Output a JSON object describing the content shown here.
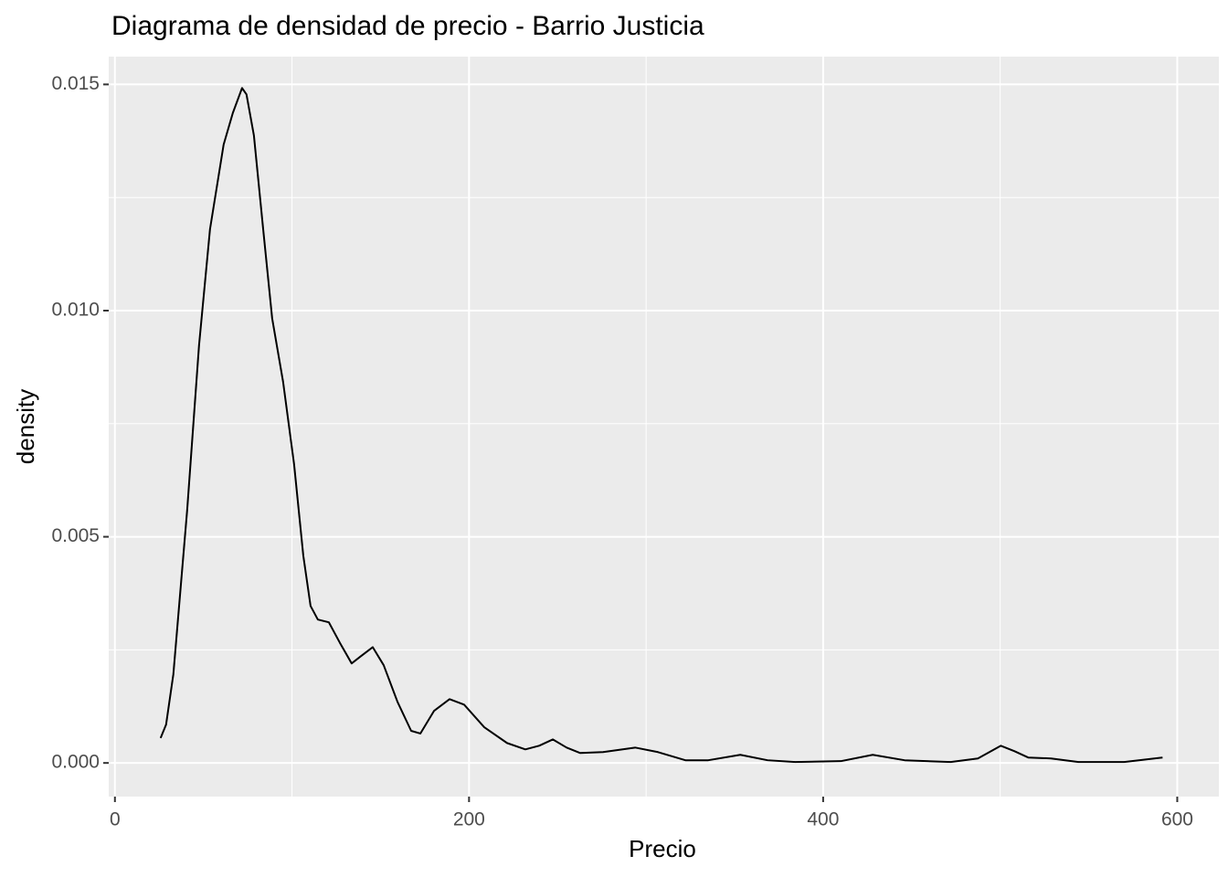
{
  "chart_data": {
    "type": "line",
    "title": "Diagrama de densidad de precio - Barrio Justicia",
    "x_label": "Precio",
    "y_label": "density",
    "x": [
      25.8,
      28.9,
      33,
      40.8,
      47.5,
      53.7,
      61.4,
      66.6,
      71.8,
      74.3,
      78.5,
      83.6,
      88.8,
      95,
      101.2,
      106.4,
      110.5,
      114.6,
      120.8,
      127,
      133.7,
      138.9,
      145.6,
      151.8,
      159.6,
      167.3,
      172.5,
      180.2,
      189,
      197.2,
      208.6,
      221.5,
      231.8,
      239.6,
      247.3,
      255.1,
      262.8,
      275.7,
      293.8,
      306.7,
      322.2,
      335.1,
      353.2,
      368.6,
      384.2,
      410,
      428,
      446,
      472,
      487.4,
      500.3,
      508.1,
      515.8,
      528.7,
      544.2,
      570,
      591.7
    ],
    "series": [
      {
        "name": "density",
        "color": "#000000",
        "values": [
          0.00055,
          0.00085,
          0.00196,
          0.00559,
          0.00923,
          0.0118,
          0.01367,
          0.01437,
          0.01492,
          0.01478,
          0.01387,
          0.01185,
          0.00983,
          0.00842,
          0.0066,
          0.00458,
          0.00347,
          0.00317,
          0.00311,
          0.00266,
          0.0022,
          0.00236,
          0.00256,
          0.00216,
          0.00135,
          0.00071,
          0.00065,
          0.00115,
          0.00141,
          0.00129,
          0.00079,
          0.00044,
          0.0003,
          0.00038,
          0.00052,
          0.00034,
          0.00022,
          0.00024,
          0.00034,
          0.00024,
          6e-05,
          6e-05,
          0.00018,
          6e-05,
          2e-05,
          4e-05,
          0.00018,
          6e-05,
          2e-05,
          0.0001,
          0.00038,
          0.00026,
          0.00012,
          0.0001,
          2e-05,
          2e-05,
          0.00012
        ]
      }
    ],
    "xlim": [
      -3.5,
      623.5
    ],
    "ylim": [
      -0.000744,
      0.015614
    ],
    "xticks": [
      0,
      200,
      400,
      600
    ],
    "yticks": [
      {
        "value": 0,
        "label": "0.000"
      },
      {
        "value": 0.005,
        "label": "0.005"
      },
      {
        "value": 0.01,
        "label": "0.010"
      },
      {
        "value": 0.015,
        "label": "0.015"
      }
    ],
    "x_minor_ticks": [
      100,
      300,
      500
    ],
    "y_minor_ticks": [
      0.0025,
      0.0075,
      0.0125
    ],
    "grid": true,
    "panel_color": "#ebebeb"
  }
}
